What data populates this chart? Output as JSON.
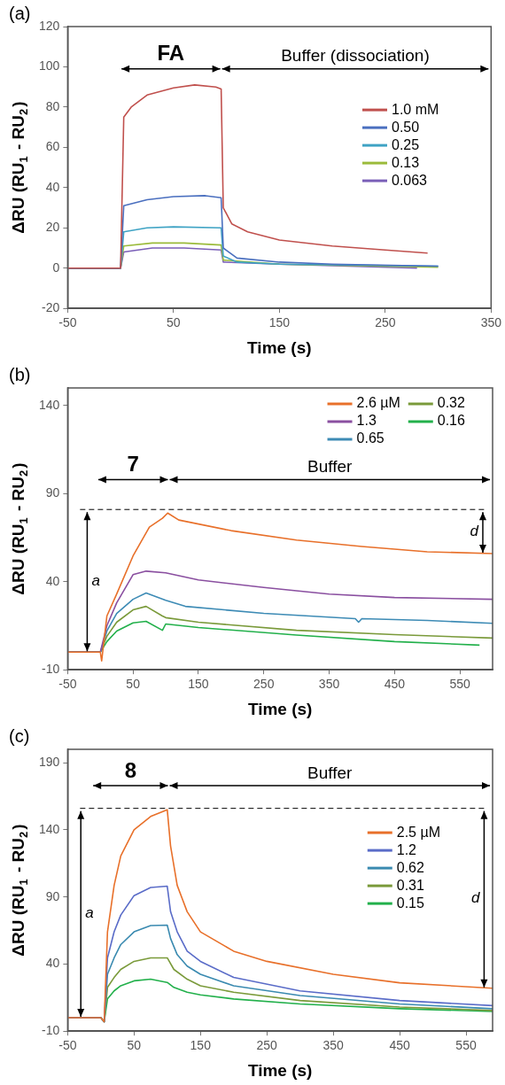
{
  "chart_data": [
    {
      "type": "line",
      "title": "(a)",
      "xlabel": "Time (s)",
      "ylabel": "ΔRU (RU$_{1}$ - RU$_{2}$)",
      "xlim": [
        -50,
        350
      ],
      "ylim": [
        -20,
        120
      ],
      "xticks": [
        -50,
        50,
        150,
        250,
        350
      ],
      "yticks": [
        -20,
        0,
        20,
        40,
        60,
        80,
        100,
        120
      ],
      "grid": false,
      "legend": "right",
      "annotations": [
        "FA",
        "Buffer (dissociation)"
      ],
      "series": [
        {
          "name": "1.0 mM",
          "color": "#c0504d",
          "x": [
            -50,
            0,
            3,
            10,
            25,
            50,
            70,
            90,
            95,
            97,
            105,
            120,
            150,
            200,
            250,
            290
          ],
          "values": [
            0,
            0,
            75,
            80,
            86,
            89.5,
            91,
            90,
            89,
            30,
            22,
            18,
            14,
            11,
            9,
            7.5
          ]
        },
        {
          "name": "0.50",
          "color": "#4a6fbf",
          "x": [
            -50,
            0,
            3,
            25,
            50,
            80,
            95,
            97,
            110,
            150,
            200,
            300
          ],
          "values": [
            0,
            0,
            31,
            34,
            35.5,
            36,
            35,
            10,
            5,
            3,
            2,
            1
          ]
        },
        {
          "name": "0.25",
          "color": "#3fa3c4",
          "x": [
            -50,
            0,
            3,
            25,
            50,
            95,
            97,
            110,
            150,
            300
          ],
          "values": [
            0,
            0,
            18,
            20,
            20.5,
            20,
            6,
            3,
            2,
            1
          ]
        },
        {
          "name": "0.13",
          "color": "#9bbb3b",
          "x": [
            -50,
            0,
            3,
            30,
            60,
            95,
            97,
            150,
            300
          ],
          "values": [
            0,
            0,
            11,
            12.5,
            12.5,
            11.5,
            4,
            2,
            0.5
          ]
        },
        {
          "name": "0.063",
          "color": "#7a5fb8",
          "x": [
            -50,
            0,
            3,
            30,
            60,
            95,
            97,
            150,
            280
          ],
          "values": [
            0,
            0,
            8,
            10,
            10,
            9,
            3,
            2,
            0
          ]
        }
      ]
    },
    {
      "type": "line",
      "title": "(b)",
      "xlabel": "Time (s)",
      "ylabel": "ΔRU (RU$_{1}$ - RU$_{2}$)",
      "xlim": [
        -50,
        600
      ],
      "ylim": [
        -10,
        150
      ],
      "xticks": [
        -50,
        50,
        150,
        250,
        350,
        450,
        550
      ],
      "yticks": [
        -10,
        40,
        90,
        140
      ],
      "grid": false,
      "legend": "top right",
      "annotations": [
        "7",
        "Buffer",
        "a",
        "d"
      ],
      "ref_lines": [
        {
          "axis": "y",
          "value": 81,
          "line_style": "dashed"
        }
      ],
      "series": [
        {
          "name": "2.6 µM",
          "color": "#e8702a",
          "x": [
            -50,
            0,
            2,
            10,
            25,
            50,
            75,
            95,
            103,
            120,
            200,
            300,
            400,
            500,
            600
          ],
          "values": [
            0,
            0,
            -5,
            20.5,
            33,
            54.6,
            71,
            76,
            79,
            75,
            69,
            63.6,
            60,
            57,
            56
          ]
        },
        {
          "name": "1.3",
          "color": "#8a4fa0",
          "x": [
            -50,
            0,
            10,
            25,
            50,
            70,
            100,
            150,
            250,
            350,
            450,
            600
          ],
          "values": [
            0,
            0,
            15,
            28,
            44,
            46,
            45,
            41,
            36.7,
            33,
            31,
            30
          ]
        },
        {
          "name": "0.65",
          "color": "#3d8bb5",
          "x": [
            -50,
            0,
            10,
            25,
            50,
            70,
            100,
            130,
            250,
            390,
            395,
            400,
            500,
            600
          ],
          "values": [
            0,
            0,
            12,
            22,
            30,
            33.6,
            29.5,
            26,
            22,
            19,
            17,
            19,
            18,
            16.4
          ]
        },
        {
          "name": "0.32",
          "color": "#7a9a3a",
          "x": [
            -50,
            0,
            10,
            25,
            50,
            70,
            95,
            100,
            150,
            300,
            450,
            600
          ],
          "values": [
            0,
            0,
            9,
            17,
            24,
            26,
            20.5,
            19.6,
            17,
            12.4,
            10,
            8
          ]
        },
        {
          "name": "0.16",
          "color": "#22b04b",
          "x": [
            -50,
            0,
            10,
            25,
            50,
            70,
            95,
            100,
            150,
            300,
            450,
            580
          ],
          "values": [
            0,
            0,
            6,
            12,
            16.6,
            17.5,
            12.4,
            16,
            14,
            9.7,
            6,
            4
          ]
        }
      ]
    },
    {
      "type": "line",
      "title": "(c)",
      "xlabel": "Time (s)",
      "ylabel": "ΔRU (RU$_{1}$ - RU$_{2}$)",
      "xlim": [
        -50,
        590
      ],
      "ylim": [
        -10,
        200
      ],
      "xticks": [
        -50,
        50,
        150,
        250,
        350,
        450,
        550
      ],
      "yticks": [
        -10,
        40,
        90,
        140,
        190
      ],
      "grid": false,
      "legend": "right",
      "annotations": [
        "8",
        "Buffer",
        "a",
        "d"
      ],
      "ref_lines": [
        {
          "axis": "y",
          "value": 156,
          "line_style": "dashed"
        }
      ],
      "series": [
        {
          "name": "2.5 µM",
          "color": "#e8702a",
          "x": [
            -50,
            0,
            5,
            10,
            20,
            30,
            50,
            75,
            100,
            105,
            115,
            130,
            150,
            200,
            250,
            350,
            450,
            590
          ],
          "values": [
            0,
            0,
            -3,
            64,
            98.6,
            120.6,
            140,
            150,
            155,
            128,
            98.6,
            79,
            64,
            49.6,
            42,
            32.4,
            26,
            22
          ]
        },
        {
          "name": "1.2",
          "color": "#5a6cc8",
          "x": [
            -50,
            0,
            5,
            10,
            20,
            30,
            50,
            75,
            100,
            105,
            115,
            130,
            150,
            200,
            300,
            450,
            590
          ],
          "values": [
            0,
            0,
            -3,
            44.6,
            64,
            76.5,
            91,
            97,
            98,
            79,
            64,
            49.6,
            42,
            30,
            20,
            12.8,
            9
          ]
        },
        {
          "name": "0.62",
          "color": "#3a8ab0",
          "x": [
            -50,
            0,
            5,
            10,
            20,
            30,
            50,
            75,
            100,
            105,
            115,
            130,
            150,
            200,
            300,
            450,
            590
          ],
          "values": [
            0,
            0,
            -3,
            32.4,
            44.6,
            54.5,
            64,
            68.7,
            69,
            59,
            47,
            38.5,
            32.4,
            23.8,
            16.5,
            10.3,
            6.7
          ]
        },
        {
          "name": "0.31",
          "color": "#7a9a3a",
          "x": [
            -50,
            0,
            5,
            10,
            20,
            30,
            50,
            75,
            100,
            110,
            130,
            150,
            200,
            300,
            450,
            590
          ],
          "values": [
            0,
            0,
            -3,
            22.6,
            30,
            36,
            42,
            44.6,
            44.6,
            36,
            28.7,
            23.8,
            19,
            12.8,
            8,
            5.4
          ]
        },
        {
          "name": "0.15",
          "color": "#22b04b",
          "x": [
            -50,
            0,
            5,
            10,
            20,
            30,
            50,
            75,
            100,
            110,
            130,
            150,
            200,
            300,
            450,
            590
          ],
          "values": [
            0,
            0,
            -3,
            14,
            20,
            23.8,
            27.5,
            28.7,
            26.3,
            22.6,
            19,
            17,
            14,
            10.3,
            6.7,
            4.7
          ]
        }
      ]
    }
  ]
}
